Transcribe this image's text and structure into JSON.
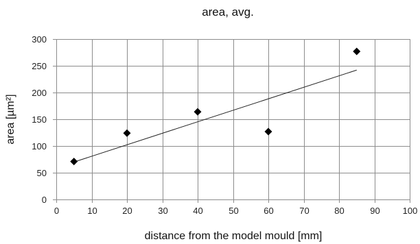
{
  "chart_data": {
    "type": "scatter",
    "title": "area, avg.",
    "xlabel": "distance from the model mould [mm]",
    "ylabel": "area [µm²]",
    "xlim": [
      0,
      100
    ],
    "ylim": [
      0,
      300
    ],
    "xticks": [
      0,
      10,
      20,
      30,
      40,
      50,
      60,
      70,
      80,
      90,
      100
    ],
    "yticks": [
      0,
      50,
      100,
      150,
      200,
      250,
      300
    ],
    "grid": true,
    "series": [
      {
        "marker": "diamond",
        "color": "#000000",
        "points": [
          {
            "x": 5,
            "y": 71
          },
          {
            "x": 20,
            "y": 124
          },
          {
            "x": 40,
            "y": 164
          },
          {
            "x": 60,
            "y": 127
          },
          {
            "x": 85,
            "y": 277
          }
        ]
      }
    ],
    "trendline": {
      "type": "linear",
      "color": "#222222",
      "start": {
        "x": 5,
        "y": 70
      },
      "end": {
        "x": 85,
        "y": 242
      }
    }
  }
}
